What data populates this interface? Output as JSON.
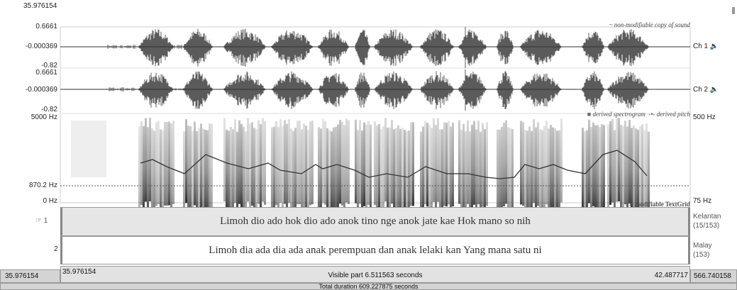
{
  "header": {
    "start_time": "35.976154"
  },
  "sound": {
    "note": "non-modifiable copy of sound",
    "channels": [
      {
        "name": "Ch 1",
        "max": "0.6661",
        "mid": "-0.000369",
        "min": "-0.82"
      },
      {
        "name": "Ch 2",
        "max": "0.6661",
        "mid": "-0.000369",
        "min": "-0.82"
      }
    ]
  },
  "spectrogram": {
    "legend_spectrogram": "derived spectrogram",
    "legend_pitch": "derived pitch",
    "freq_top": "5000 Hz",
    "freq_cursor": "870.2 Hz",
    "freq_bottom": "0 Hz",
    "pitch_top": "500 Hz",
    "pitch_bottom": "75 Hz"
  },
  "textgrid": {
    "note": "modifiable TextGrid",
    "tiers": [
      {
        "number": "1",
        "text": "Limoh dio ado hok dio ado anok tino nge anok jate kae Hok mano so nih",
        "name": "Kelantan",
        "count": "(15/153)"
      },
      {
        "number": "2",
        "text": "Limoh dia ada dia ada anak perempuan dan anak lelaki kan Yang mana satu ni",
        "name": "Malay",
        "count": "(153)"
      }
    ]
  },
  "footer": {
    "window_start": "35.976154",
    "visible_start": "35.976154",
    "visible_part": "Visible part 6.511563 seconds",
    "visible_end": "42.487717",
    "window_end": "566.740158",
    "total_duration": "Total duration 609.227875 seconds"
  }
}
